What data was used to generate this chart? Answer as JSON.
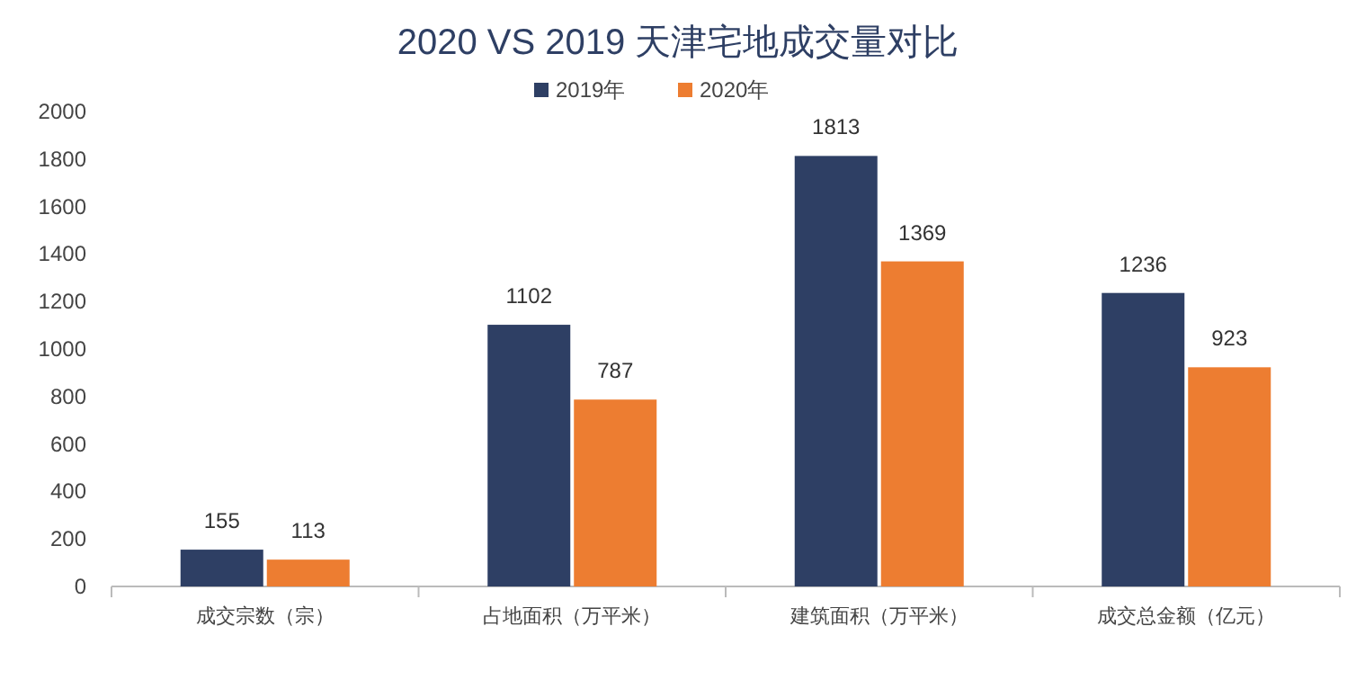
{
  "chart_data": {
    "type": "bar",
    "title": "2020 VS 2019 天津宅地成交量对比",
    "categories": [
      "成交宗数（宗）",
      "占地面积（万平米）",
      "建筑面积（万平米）",
      "成交总金额（亿元）"
    ],
    "series": [
      {
        "name": "2019年",
        "color": "#2e3f64",
        "values": [
          155,
          1102,
          1813,
          1236
        ]
      },
      {
        "name": "2020年",
        "color": "#ed7d31",
        "values": [
          113,
          787,
          1369,
          923
        ]
      }
    ],
    "ylim": [
      0,
      2000
    ],
    "yticks": [
      0,
      200,
      400,
      600,
      800,
      1000,
      1200,
      1400,
      1600,
      1800,
      2000
    ],
    "data_labels": true,
    "legend": "top",
    "grid": false
  }
}
